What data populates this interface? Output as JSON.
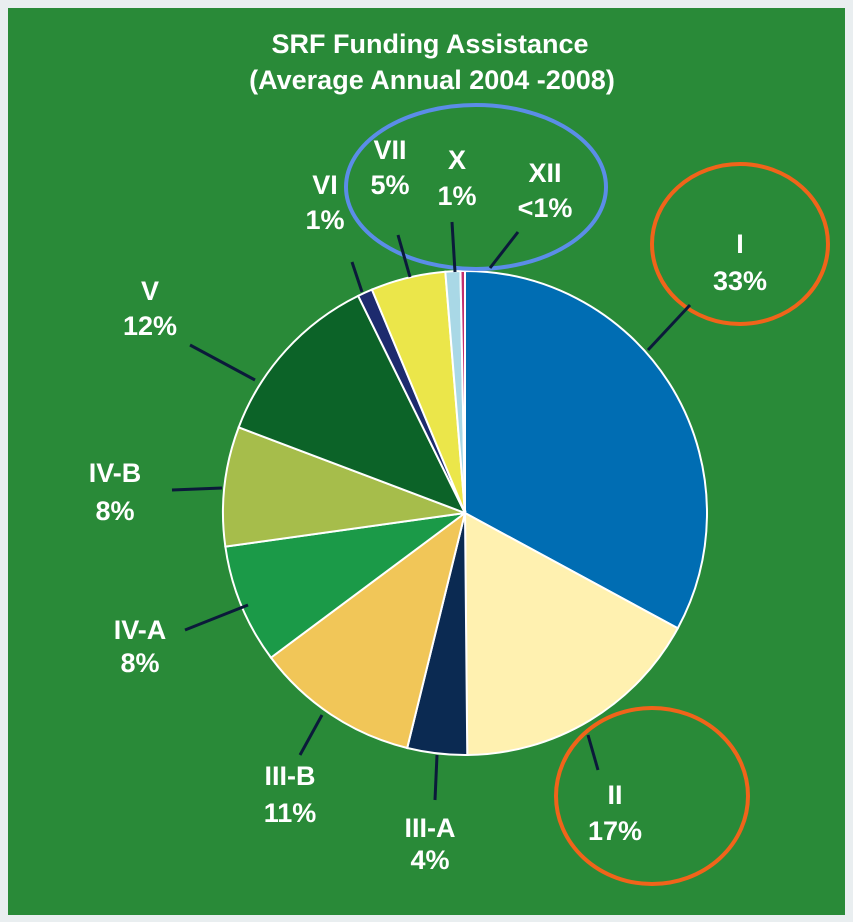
{
  "chart_data": {
    "type": "pie",
    "title": "SRF Funding Assistance",
    "subtitle": "(Average Annual 2004 -2008)",
    "categories": [
      "I",
      "II",
      "III-A",
      "III-B",
      "IV-A",
      "IV-B",
      "V",
      "VI",
      "VII",
      "X",
      "XII"
    ],
    "values": [
      33,
      17,
      4,
      11,
      8,
      8,
      12,
      1,
      5,
      1,
      0.3
    ],
    "value_labels": [
      "33%",
      "17%",
      "4%",
      "11%",
      "8%",
      "8%",
      "12%",
      "1%",
      "5%",
      "1%",
      "<1%"
    ],
    "colors": [
      "#006db3",
      "#fff1b0",
      "#0b2a52",
      "#f1c658",
      "#1b9a48",
      "#a6bd4b",
      "#0c6328",
      "#1d2b6e",
      "#ebe64a",
      "#a9d8e6",
      "#c2306e"
    ]
  }
}
